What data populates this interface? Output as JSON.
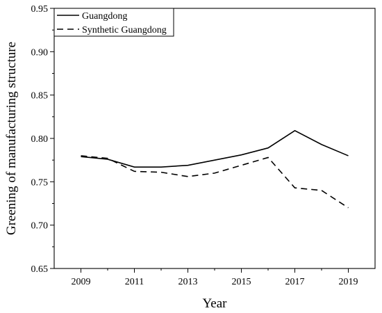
{
  "chart_data": {
    "type": "line",
    "title": "",
    "xlabel": "Year",
    "ylabel": "Greening of manufacturing structure",
    "xlim": [
      2008,
      2020
    ],
    "ylim": [
      0.65,
      0.95
    ],
    "x_ticks": [
      "2009",
      "2011",
      "2013",
      "2015",
      "2017",
      "2019"
    ],
    "y_ticks": [
      "0.65",
      "0.70",
      "0.75",
      "0.80",
      "0.85",
      "0.90",
      "0.95"
    ],
    "x": [
      2009,
      2010,
      2011,
      2012,
      2013,
      2014,
      2015,
      2016,
      2017,
      2018,
      2019
    ],
    "grid": false,
    "legend_position": "top-left",
    "series": [
      {
        "name": "Guangdong",
        "style": "solid",
        "color": "#000000",
        "values": [
          0.779,
          0.776,
          0.767,
          0.767,
          0.769,
          0.775,
          0.781,
          0.789,
          0.809,
          0.793,
          0.78
        ]
      },
      {
        "name": "Synthetic Guangdong",
        "style": "dashed",
        "color": "#000000",
        "values": [
          0.78,
          0.777,
          0.762,
          0.761,
          0.756,
          0.76,
          0.769,
          0.778,
          0.743,
          0.74,
          0.72
        ]
      }
    ]
  }
}
